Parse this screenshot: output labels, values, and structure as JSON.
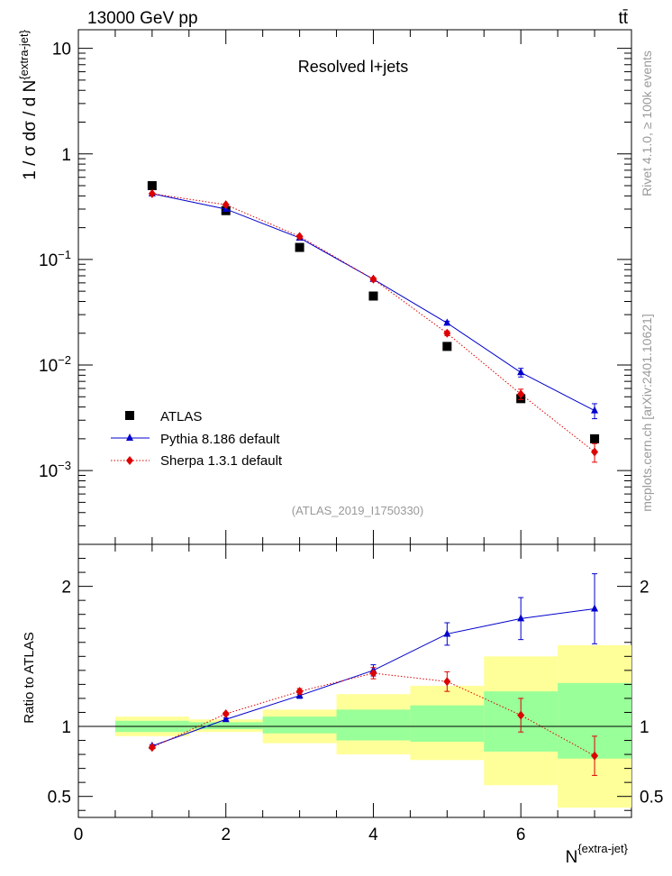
{
  "header": {
    "energy_label": "13000 GeV pp",
    "process_label": "tt̄"
  },
  "side_labels": {
    "rivet": "Rivet 4.1.0, ≥ 100k events",
    "source": "mcplots.cern.ch [arXiv:2401.10621]"
  },
  "colors": {
    "data": "#000000",
    "pythia": "#0000cc",
    "sherpa": "#dd0000",
    "band_inner": "#99ff99",
    "band_outer": "#ffff99"
  },
  "chart_data": [
    {
      "type": "scatter",
      "title": "Resolved l+jets",
      "watermark": "(ATLAS_2019_I1750330)",
      "xlabel": "N{extra-jet}",
      "xlabel_main": "N",
      "xlabel_sup": "{extra-jet}",
      "ylabel": "1 / σ dσ / d N{extra-jet}",
      "ylabel_main": "1 / σ dσ / d N",
      "ylabel_sup": "{extra-jet}",
      "yscale": "log",
      "xlim": [
        0,
        7.5
      ],
      "ylim": [
        0.0002,
        15
      ],
      "y_ticks": [
        {
          "value": 10,
          "label": "10"
        },
        {
          "value": 1,
          "label": "1"
        },
        {
          "value": 0.1,
          "label": "10",
          "exp": "−1"
        },
        {
          "value": 0.01,
          "label": "10",
          "exp": "−2"
        },
        {
          "value": 0.001,
          "label": "10",
          "exp": "−3"
        }
      ],
      "legend": [
        "ATLAS",
        "Pythia 8.186 default",
        "Sherpa 1.3.1 default"
      ],
      "legend_position": "bottom-left",
      "series": [
        {
          "name": "ATLAS",
          "marker": "square",
          "x": [
            1,
            2,
            3,
            4,
            5,
            6,
            7
          ],
          "y": [
            0.5,
            0.29,
            0.13,
            0.045,
            0.015,
            0.0048,
            0.002
          ]
        },
        {
          "name": "Pythia 8.186 default",
          "marker": "triangle",
          "line": "solid",
          "x": [
            1,
            2,
            3,
            4,
            5,
            6,
            7
          ],
          "y": [
            0.42,
            0.3,
            0.16,
            0.065,
            0.025,
            0.0085,
            0.0037
          ],
          "yerr": [
            0.0,
            0.0,
            0.0,
            0.002,
            0.001,
            0.0008,
            0.0006
          ]
        },
        {
          "name": "Sherpa 1.3.1 default",
          "marker": "diamond",
          "line": "dotted",
          "x": [
            1,
            2,
            3,
            4,
            5,
            6,
            7
          ],
          "y": [
            0.42,
            0.33,
            0.165,
            0.065,
            0.02,
            0.0053,
            0.0015
          ],
          "yerr": [
            0.0,
            0.0,
            0.0,
            0.002,
            0.001,
            0.0006,
            0.0003
          ]
        }
      ]
    },
    {
      "type": "scatter",
      "ylabel": "Ratio to ATLAS",
      "xlabel": "N{extra-jet}",
      "xlim": [
        0,
        7.5
      ],
      "ylim": [
        0.35,
        2.3
      ],
      "x_ticks": [
        0,
        2,
        4,
        6
      ],
      "y_ticks": [
        0.5,
        1,
        2
      ],
      "reference": 1,
      "bands": [
        {
          "x_low": 0.5,
          "x_high": 1.5,
          "inner": [
            0.96,
            1.04
          ],
          "outer": [
            0.93,
            1.07
          ]
        },
        {
          "x_low": 1.5,
          "x_high": 2.5,
          "inner": [
            0.98,
            1.03
          ],
          "outer": [
            0.96,
            1.05
          ]
        },
        {
          "x_low": 2.5,
          "x_high": 3.5,
          "inner": [
            0.95,
            1.07
          ],
          "outer": [
            0.88,
            1.12
          ]
        },
        {
          "x_low": 3.5,
          "x_high": 4.5,
          "inner": [
            0.9,
            1.12
          ],
          "outer": [
            0.8,
            1.23
          ]
        },
        {
          "x_low": 4.5,
          "x_high": 5.5,
          "inner": [
            0.89,
            1.15
          ],
          "outer": [
            0.76,
            1.29
          ]
        },
        {
          "x_low": 5.5,
          "x_high": 6.5,
          "inner": [
            0.82,
            1.25
          ],
          "outer": [
            0.58,
            1.5
          ]
        },
        {
          "x_low": 6.5,
          "x_high": 7.5,
          "inner": [
            0.77,
            1.31
          ],
          "outer": [
            0.42,
            1.58
          ]
        }
      ],
      "series": [
        {
          "name": "Pythia 8.186 default",
          "marker": "triangle",
          "line": "solid",
          "x": [
            1,
            2,
            3,
            4,
            5,
            6,
            7
          ],
          "y": [
            0.86,
            1.05,
            1.22,
            1.4,
            1.66,
            1.77,
            1.84
          ],
          "yerr": [
            0.01,
            0.01,
            0.02,
            0.04,
            0.08,
            0.15,
            0.25
          ]
        },
        {
          "name": "Sherpa 1.3.1 default",
          "marker": "diamond",
          "line": "dotted",
          "x": [
            1,
            2,
            3,
            4,
            5,
            6,
            7
          ],
          "y": [
            0.85,
            1.09,
            1.25,
            1.38,
            1.32,
            1.08,
            0.79
          ],
          "yerr": [
            0.01,
            0.01,
            0.02,
            0.04,
            0.07,
            0.12,
            0.14
          ]
        }
      ]
    }
  ]
}
